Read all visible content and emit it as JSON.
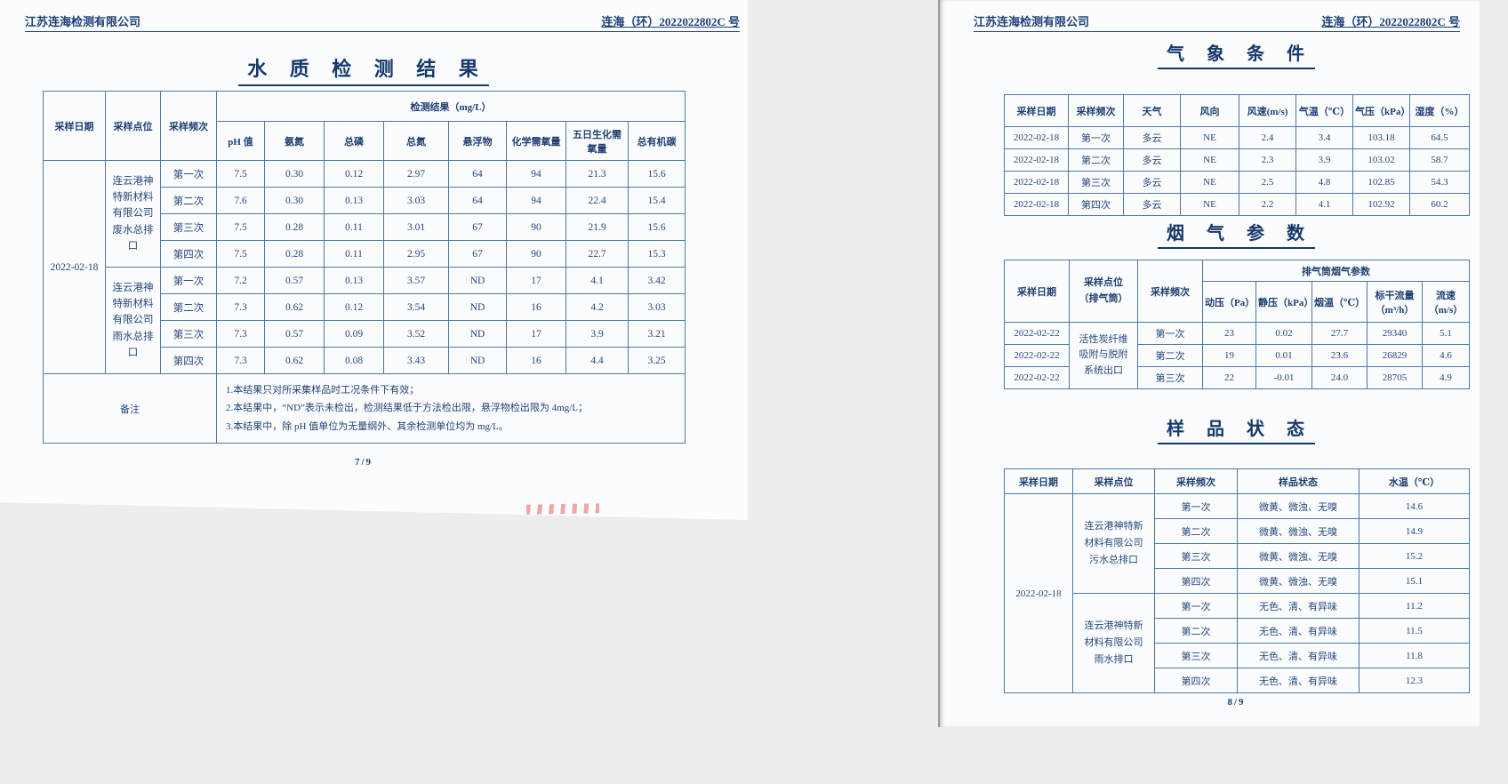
{
  "left_page": {
    "company": "江苏连海检测有限公司",
    "doc_number": "连海（环）2022022802C 号",
    "title": "水 质 检 测 结 果",
    "page_number": "7/9",
    "water_table": {
      "fixed_headers": [
        "采样日期",
        "采样点位",
        "采样频次"
      ],
      "group_header": "检测结果（mg/L）",
      "param_headers": [
        "pH 值",
        "氨氮",
        "总磷",
        "总氮",
        "悬浮物",
        "化学需氧量",
        "五日生化需氧量",
        "总有机碳"
      ],
      "date": "2022-02-18",
      "groups": [
        {
          "site": "连云港神特新材料有限公司废水总排口",
          "rows": [
            {
              "freq": "第一次",
              "values": [
                "7.5",
                "0.30",
                "0.12",
                "2.97",
                "64",
                "94",
                "21.3",
                "15.6"
              ]
            },
            {
              "freq": "第二次",
              "values": [
                "7.6",
                "0.30",
                "0.13",
                "3.03",
                "64",
                "94",
                "22.4",
                "15.4"
              ]
            },
            {
              "freq": "第三次",
              "values": [
                "7.5",
                "0.28",
                "0.11",
                "3.01",
                "67",
                "90",
                "21.9",
                "15.6"
              ]
            },
            {
              "freq": "第四次",
              "values": [
                "7.5",
                "0.28",
                "0.11",
                "2.95",
                "67",
                "90",
                "22.7",
                "15.3"
              ]
            }
          ]
        },
        {
          "site": "连云港神特新材料有限公司雨水总排口",
          "rows": [
            {
              "freq": "第一次",
              "values": [
                "7.2",
                "0.57",
                "0.13",
                "3.57",
                "ND",
                "17",
                "4.1",
                "3.42"
              ]
            },
            {
              "freq": "第二次",
              "values": [
                "7.3",
                "0.62",
                "0.12",
                "3.54",
                "ND",
                "16",
                "4.2",
                "3.03"
              ]
            },
            {
              "freq": "第三次",
              "values": [
                "7.3",
                "0.57",
                "0.09",
                "3.52",
                "ND",
                "17",
                "3.9",
                "3.21"
              ]
            },
            {
              "freq": "第四次",
              "values": [
                "7.3",
                "0.62",
                "0.08",
                "3.43",
                "ND",
                "16",
                "4.4",
                "3.25"
              ]
            }
          ]
        }
      ],
      "remark_label": "备注",
      "remark_lines": [
        "1.本结果只对所采集样品时工况条件下有效；",
        "2.本结果中，“ND”表示未检出，检测结果低于方法检出限，悬浮物检出限为 4mg/L；",
        "3.本结果中，除 pH 值单位为无量纲外、其余检测单位均为 mg/L。"
      ]
    }
  },
  "right_page": {
    "company": "江苏连海检测有限公司",
    "doc_number": "连海（环）2022022802C 号",
    "page_number": "8/9",
    "weather": {
      "title": "气 象 条 件",
      "headers": [
        "采样日期",
        "采样频次",
        "天气",
        "风向",
        "风速(m/s)",
        "气温（℃）",
        "气压（kPa）",
        "湿度（%）"
      ],
      "rows": [
        [
          "2022-02-18",
          "第一次",
          "多云",
          "NE",
          "2.4",
          "3.4",
          "103.18",
          "64.5"
        ],
        [
          "2022-02-18",
          "第二次",
          "多云",
          "NE",
          "2.3",
          "3.9",
          "103.02",
          "58.7"
        ],
        [
          "2022-02-18",
          "第三次",
          "多云",
          "NE",
          "2.5",
          "4.8",
          "102.85",
          "54.3"
        ],
        [
          "2022-02-18",
          "第四次",
          "多云",
          "NE",
          "2.2",
          "4.1",
          "102.92",
          "60.2"
        ]
      ]
    },
    "flue": {
      "title": "烟 气 参 数",
      "fixed_headers": [
        "采样日期",
        "采样点位（排气筒）",
        "采样频次"
      ],
      "group_header": "排气筒烟气参数",
      "param_headers": [
        "动压（Pa）",
        "静压（kPa）",
        "烟温（℃）",
        "标干流量（m³/h）",
        "流速（m/s）"
      ],
      "site": "活性炭纤维吸附与脱附系统出口",
      "rows": [
        {
          "date": "2022-02-22",
          "freq": "第一次",
          "values": [
            "23",
            "0.02",
            "27.7",
            "29340",
            "5.1"
          ]
        },
        {
          "date": "2022-02-22",
          "freq": "第二次",
          "values": [
            "19",
            "0.01",
            "23.6",
            "26829",
            "4.6"
          ]
        },
        {
          "date": "2022-02-22",
          "freq": "第三次",
          "values": [
            "22",
            "-0.01",
            "24.0",
            "28705",
            "4.9"
          ]
        }
      ]
    },
    "samples": {
      "title": "样 品 状 态",
      "headers": [
        "采样日期",
        "采样点位",
        "采样频次",
        "样品状态",
        "水温（℃）"
      ],
      "date": "2022-02-18",
      "groups": [
        {
          "site": "连云港神特新材料有限公司污水总排口",
          "rows": [
            {
              "freq": "第一次",
              "state": "微黄、微浊、无嗅",
              "temp": "14.6"
            },
            {
              "freq": "第二次",
              "state": "微黄、微浊、无嗅",
              "temp": "14.9"
            },
            {
              "freq": "第三次",
              "state": "微黄、微浊、无嗅",
              "temp": "15.2"
            },
            {
              "freq": "第四次",
              "state": "微黄、微浊、无嗅",
              "temp": "15.1"
            }
          ]
        },
        {
          "site": "连云港神特新材料有限公司雨水排口",
          "rows": [
            {
              "freq": "第一次",
              "state": "无色、清、有异味",
              "temp": "11.2"
            },
            {
              "freq": "第二次",
              "state": "无色、清、有异味",
              "temp": "11.5"
            },
            {
              "freq": "第三次",
              "state": "无色、清、有异味",
              "temp": "11.8"
            },
            {
              "freq": "第四次",
              "state": "无色、清、有异味",
              "temp": "12.3"
            }
          ]
        }
      ]
    }
  }
}
